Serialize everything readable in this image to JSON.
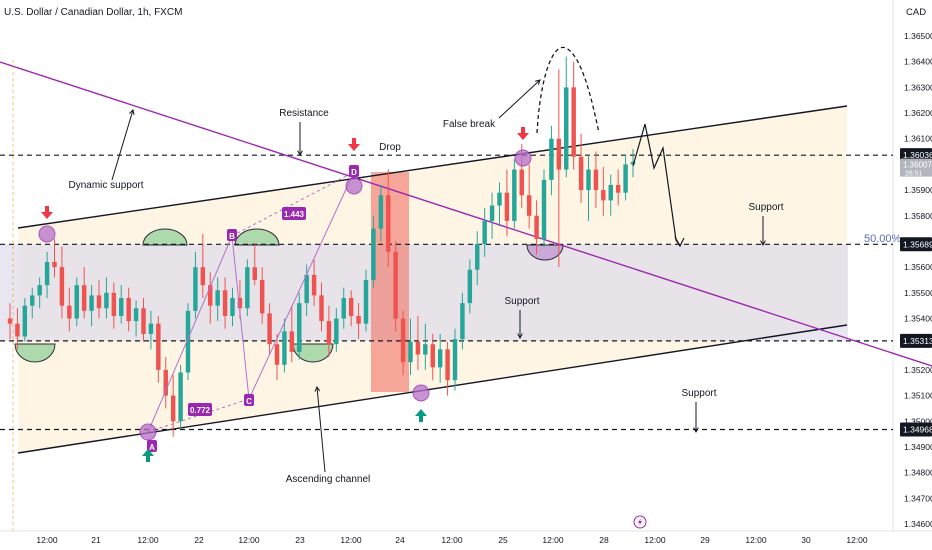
{
  "header": {
    "symbol_title": "U.S. Dollar / Canadian Dollar, 1h, FXCM",
    "currency": "CAD"
  },
  "colors": {
    "candle_up": "#26a69a",
    "candle_down": "#ef5350",
    "purple": "#9c27b0",
    "channel_fill": "#fff3e0",
    "range_fill": "#e1e0ee",
    "drop_fill": "#f48a80",
    "green_bump": "#a5d6a7",
    "marker": "#b56fc9"
  },
  "chart_data": {
    "type": "candlestick",
    "title": "U.S. Dollar / Canadian Dollar, 1h, FXCM",
    "ylim": [
      1.3458,
      1.3658
    ],
    "y_ticks": [
      1.346,
      1.347,
      1.348,
      1.349,
      1.35,
      1.351,
      1.352,
      1.353,
      1.354,
      1.355,
      1.356,
      1.357,
      1.358,
      1.359,
      1.36,
      1.361,
      1.362,
      1.363,
      1.364,
      1.365
    ],
    "y_tick_labels": [
      "1.34600",
      "1.34700",
      "1.34800",
      "1.34900",
      "1.35000",
      "1.35100",
      "1.35200",
      "1.35300",
      "1.35400",
      "1.35500",
      "1.35600",
      "1.35700",
      "1.35800",
      "1.35900",
      "1.36000",
      "1.36100",
      "1.36200",
      "1.36300",
      "1.36400",
      "1.36500"
    ],
    "x_tick_labels": [
      "12:00",
      "21",
      "12:00",
      "22",
      "12:00",
      "23",
      "12:00",
      "24",
      "12:00",
      "25",
      "12:00",
      "28",
      "12:00",
      "29",
      "12:00",
      "30",
      "12:00"
    ],
    "levels": [
      {
        "value": 1.36036,
        "label": "1.36036"
      },
      {
        "value": 1.35689,
        "label": "1.35689"
      },
      {
        "value": 1.35313,
        "label": "1.35313"
      },
      {
        "value": 1.34968,
        "label": "1.34968"
      }
    ],
    "current_price": {
      "value": 1.36007,
      "label": "1.36007",
      "sub": "26:51"
    },
    "fib_label": "50.00%",
    "wave_labels": [
      "A",
      "B",
      "C",
      "D"
    ],
    "ratios": [
      "1.443",
      "0.772"
    ],
    "annotations": {
      "resistance": "Resistance",
      "dynamic_support": "Dynamic support",
      "drop": "Drop",
      "false_break": "False break",
      "support_right": "Support",
      "support_mid": "Support",
      "support_low": "Support",
      "ascending_channel": "Ascending channel"
    },
    "candles": [
      [
        1.354,
        1.3546,
        1.3532,
        1.3538
      ],
      [
        1.3538,
        1.3544,
        1.3528,
        1.3533
      ],
      [
        1.3533,
        1.3548,
        1.3531,
        1.3545
      ],
      [
        1.3545,
        1.3552,
        1.354,
        1.3549
      ],
      [
        1.3549,
        1.3556,
        1.3544,
        1.3553
      ],
      [
        1.3553,
        1.3566,
        1.3548,
        1.3562
      ],
      [
        1.3562,
        1.3571,
        1.3556,
        1.356
      ],
      [
        1.356,
        1.3568,
        1.354,
        1.3545
      ],
      [
        1.3545,
        1.3552,
        1.3535,
        1.354
      ],
      [
        1.354,
        1.3556,
        1.3537,
        1.3553
      ],
      [
        1.3553,
        1.356,
        1.354,
        1.3543
      ],
      [
        1.3543,
        1.3553,
        1.3537,
        1.3549
      ],
      [
        1.3549,
        1.3555,
        1.354,
        1.3544
      ],
      [
        1.3544,
        1.3556,
        1.354,
        1.355
      ],
      [
        1.355,
        1.3554,
        1.3536,
        1.3541
      ],
      [
        1.3541,
        1.3553,
        1.3538,
        1.3548
      ],
      [
        1.3548,
        1.3552,
        1.3535,
        1.3539
      ],
      [
        1.3539,
        1.3547,
        1.3533,
        1.3544
      ],
      [
        1.3544,
        1.3548,
        1.3531,
        1.3534
      ],
      [
        1.3534,
        1.3543,
        1.3528,
        1.3538
      ],
      [
        1.3538,
        1.3541,
        1.3515,
        1.352
      ],
      [
        1.352,
        1.3525,
        1.3505,
        1.351
      ],
      [
        1.351,
        1.3518,
        1.3494,
        1.35
      ],
      [
        1.35,
        1.3522,
        1.3497,
        1.3519
      ],
      [
        1.3519,
        1.3546,
        1.3516,
        1.3543
      ],
      [
        1.3543,
        1.3566,
        1.354,
        1.356
      ],
      [
        1.356,
        1.3573,
        1.3548,
        1.3553
      ],
      [
        1.3553,
        1.3558,
        1.3538,
        1.3545
      ],
      [
        1.3545,
        1.3556,
        1.3539,
        1.3551
      ],
      [
        1.3551,
        1.3556,
        1.3536,
        1.3541
      ],
      [
        1.3541,
        1.3552,
        1.3537,
        1.3548
      ],
      [
        1.3548,
        1.3555,
        1.354,
        1.3544
      ],
      [
        1.3544,
        1.3563,
        1.3541,
        1.356
      ],
      [
        1.356,
        1.3569,
        1.3553,
        1.3555
      ],
      [
        1.3555,
        1.356,
        1.3538,
        1.3542
      ],
      [
        1.3542,
        1.3546,
        1.3526,
        1.353
      ],
      [
        1.353,
        1.3534,
        1.3516,
        1.3522
      ],
      [
        1.3522,
        1.354,
        1.3519,
        1.3535
      ],
      [
        1.3535,
        1.3545,
        1.3523,
        1.3527
      ],
      [
        1.3527,
        1.355,
        1.3524,
        1.3546
      ],
      [
        1.3546,
        1.3561,
        1.3541,
        1.3557
      ],
      [
        1.3557,
        1.3563,
        1.3545,
        1.3549
      ],
      [
        1.3549,
        1.3554,
        1.3535,
        1.3539
      ],
      [
        1.3539,
        1.3545,
        1.3525,
        1.353
      ],
      [
        1.353,
        1.3544,
        1.3527,
        1.354
      ],
      [
        1.354,
        1.3552,
        1.3536,
        1.3548
      ],
      [
        1.3548,
        1.3551,
        1.3537,
        1.3541
      ],
      [
        1.3541,
        1.3546,
        1.3532,
        1.3538
      ],
      [
        1.3538,
        1.3559,
        1.3535,
        1.3555
      ],
      [
        1.3555,
        1.358,
        1.3552,
        1.3575
      ],
      [
        1.3575,
        1.3592,
        1.357,
        1.3588
      ],
      [
        1.3588,
        1.3598,
        1.356,
        1.3566
      ],
      [
        1.3566,
        1.357,
        1.3535,
        1.354
      ],
      [
        1.354,
        1.3543,
        1.3518,
        1.3523
      ],
      [
        1.3523,
        1.354,
        1.3518,
        1.3531
      ],
      [
        1.3531,
        1.3541,
        1.352,
        1.3526
      ],
      [
        1.3526,
        1.3538,
        1.352,
        1.353
      ],
      [
        1.353,
        1.3534,
        1.3516,
        1.3521
      ],
      [
        1.3521,
        1.3534,
        1.3515,
        1.3528
      ],
      [
        1.3528,
        1.3531,
        1.351,
        1.3516
      ],
      [
        1.3516,
        1.3536,
        1.3512,
        1.3532
      ],
      [
        1.3532,
        1.355,
        1.3528,
        1.3546
      ],
      [
        1.3546,
        1.3563,
        1.3542,
        1.3559
      ],
      [
        1.3559,
        1.3574,
        1.3553,
        1.3569
      ],
      [
        1.3569,
        1.3583,
        1.3564,
        1.3578
      ],
      [
        1.3578,
        1.3589,
        1.3571,
        1.3584
      ],
      [
        1.3584,
        1.3593,
        1.3576,
        1.3589
      ],
      [
        1.3589,
        1.3598,
        1.3572,
        1.3578
      ],
      [
        1.3578,
        1.3602,
        1.3575,
        1.3598
      ],
      [
        1.3598,
        1.3608,
        1.3583,
        1.3588
      ],
      [
        1.3588,
        1.36,
        1.3575,
        1.358
      ],
      [
        1.358,
        1.3586,
        1.3565,
        1.3571
      ],
      [
        1.3571,
        1.3598,
        1.3568,
        1.3594
      ],
      [
        1.3594,
        1.3615,
        1.3588,
        1.361
      ],
      [
        1.361,
        1.3637,
        1.356,
        1.3598
      ],
      [
        1.3598,
        1.3642,
        1.3595,
        1.363
      ],
      [
        1.363,
        1.364,
        1.3598,
        1.3603
      ],
      [
        1.3603,
        1.3612,
        1.3585,
        1.359
      ],
      [
        1.359,
        1.3604,
        1.3578,
        1.3598
      ],
      [
        1.3598,
        1.3605,
        1.3583,
        1.359
      ],
      [
        1.359,
        1.3599,
        1.358,
        1.3586
      ],
      [
        1.3586,
        1.3596,
        1.358,
        1.3592
      ],
      [
        1.3592,
        1.3598,
        1.3584,
        1.3589
      ],
      [
        1.3589,
        1.3604,
        1.3586,
        1.36
      ],
      [
        1.36,
        1.3606,
        1.3595,
        1.3601
      ]
    ]
  }
}
